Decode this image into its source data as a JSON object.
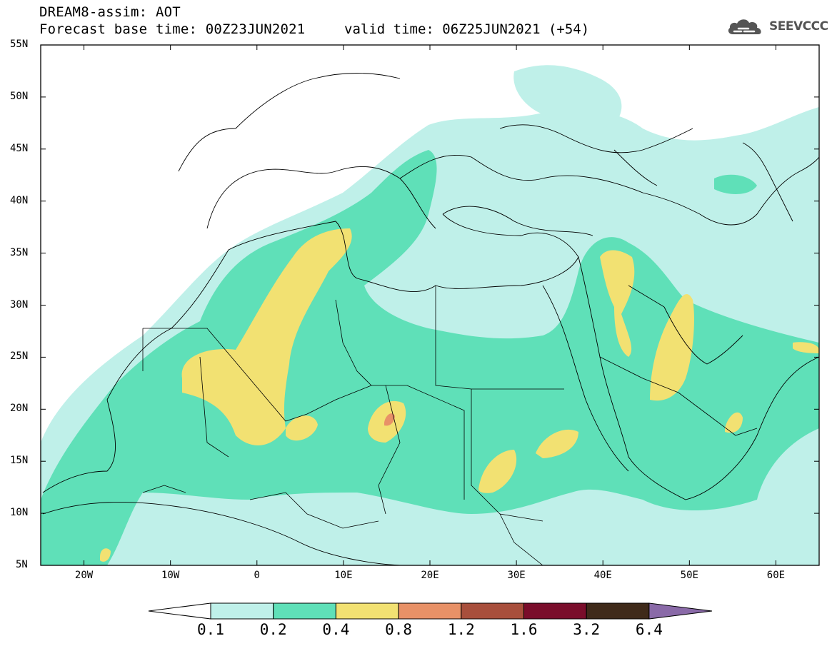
{
  "header": {
    "line1": "DREAM8-assim: AOT",
    "line2": "Forecast base time: 00Z23JUN2021",
    "valid": "valid time: 06Z25JUN2021 (+54)",
    "logo_text": "SEEVCCC",
    "logo_icon": "cloud-icon"
  },
  "map": {
    "lon_range": [
      -25,
      65
    ],
    "lat_range": [
      5,
      55
    ],
    "y_ticks": [
      "55N",
      "50N",
      "45N",
      "40N",
      "35N",
      "30N",
      "25N",
      "20N",
      "15N",
      "10N",
      "5N"
    ],
    "x_ticks": [
      "20W",
      "10W",
      "0",
      "10E",
      "20E",
      "30E",
      "40E",
      "50E",
      "60E"
    ]
  },
  "colorbar": {
    "labels": [
      "0.1",
      "0.2",
      "0.4",
      "0.8",
      "1.2",
      "1.6",
      "3.2",
      "6.4"
    ],
    "colors": [
      "#ffffff",
      "#bff0e9",
      "#5fe0b8",
      "#f2e172",
      "#e89167",
      "#a84f3c",
      "#7a0d2b",
      "#3f2a1a",
      "#8a6aa8"
    ]
  }
}
